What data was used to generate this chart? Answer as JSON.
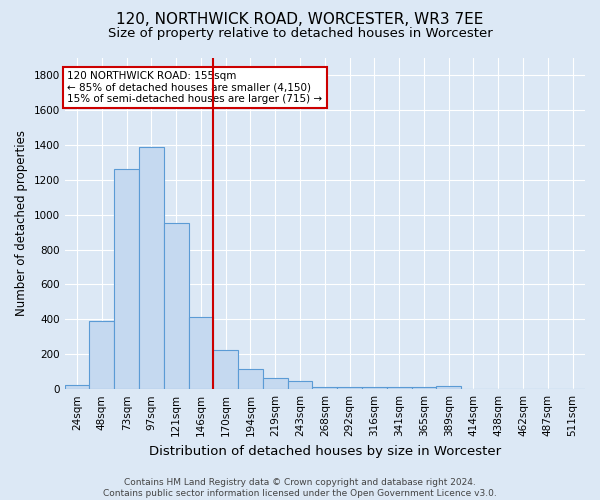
{
  "title": "120, NORTHWICK ROAD, WORCESTER, WR3 7EE",
  "subtitle": "Size of property relative to detached houses in Worcester",
  "xlabel": "Distribution of detached houses by size in Worcester",
  "ylabel": "Number of detached properties",
  "categories": [
    "24sqm",
    "48sqm",
    "73sqm",
    "97sqm",
    "121sqm",
    "146sqm",
    "170sqm",
    "194sqm",
    "219sqm",
    "243sqm",
    "268sqm",
    "292sqm",
    "316sqm",
    "341sqm",
    "365sqm",
    "389sqm",
    "414sqm",
    "438sqm",
    "462sqm",
    "487sqm",
    "511sqm"
  ],
  "values": [
    25,
    390,
    1260,
    1390,
    950,
    415,
    225,
    115,
    65,
    47,
    15,
    10,
    10,
    10,
    10,
    18,
    0,
    0,
    0,
    0,
    0
  ],
  "bar_color": "#c5d9f0",
  "bar_edge_color": "#5b9bd5",
  "bg_color": "#dce8f5",
  "grid_color": "#ffffff",
  "vline_x": 5.5,
  "vline_color": "#cc0000",
  "annotation_text": "120 NORTHWICK ROAD: 155sqm\n← 85% of detached houses are smaller (4,150)\n15% of semi-detached houses are larger (715) →",
  "annotation_box_color": "#ffffff",
  "annotation_box_edge_color": "#cc0000",
  "footer_text": "Contains HM Land Registry data © Crown copyright and database right 2024.\nContains public sector information licensed under the Open Government Licence v3.0.",
  "ylim": [
    0,
    1900
  ],
  "yticks": [
    0,
    200,
    400,
    600,
    800,
    1000,
    1200,
    1400,
    1600,
    1800
  ],
  "title_fontsize": 11,
  "subtitle_fontsize": 9.5,
  "xlabel_fontsize": 9.5,
  "ylabel_fontsize": 8.5,
  "tick_fontsize": 7.5,
  "annot_fontsize": 7.5,
  "footer_fontsize": 6.5
}
